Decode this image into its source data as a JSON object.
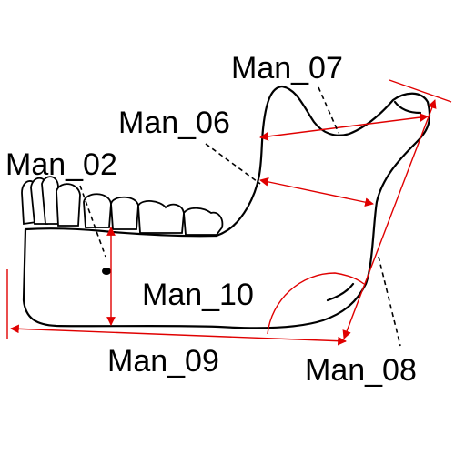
{
  "figure": {
    "kind": "mandible-measurement-diagram",
    "measurement_color": "#e00000",
    "outline_color": "#000000"
  },
  "labels": {
    "man_02": "Man_02",
    "man_06": "Man_06",
    "man_07": "Man_07",
    "man_08": "Man_08",
    "man_09": "Man_09",
    "man_10": "Man_10"
  }
}
